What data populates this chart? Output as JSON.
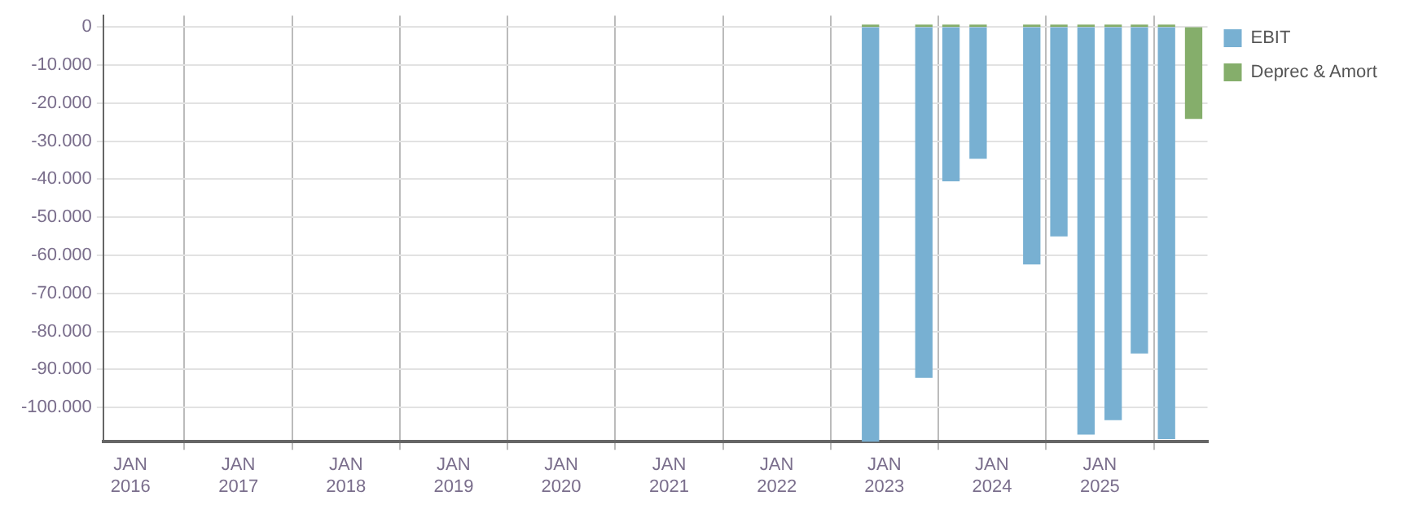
{
  "chart_data": {
    "type": "bar",
    "x": [
      "2022-11-15",
      "2023-05-15",
      "2023-08-15",
      "2023-11-15",
      "2024-05-15",
      "2024-08-15",
      "2024-11-15",
      "2025-02-15",
      "2025-05-15",
      "2025-08-15",
      "2025-11-15"
    ],
    "series": [
      {
        "name": "EBIT",
        "color": "#78b0d2",
        "values": [
          -109000,
          -92100,
          -40400,
          -34500,
          -62300,
          -54900,
          -107000,
          -103200,
          -85700,
          -108200,
          null
        ]
      },
      {
        "name": "Deprec & Amort",
        "color": "#85ae6b",
        "values": [
          500,
          500,
          500,
          500,
          500,
          500,
          500,
          500,
          500,
          500,
          -24000
        ]
      }
    ],
    "xlim": [
      "2015-10-01",
      "2026-01-01"
    ],
    "xticks": [
      {
        "value": "2016-01-01",
        "label": "JAN 2016"
      },
      {
        "value": "2017-01-01",
        "label": "JAN 2017"
      },
      {
        "value": "2018-01-01",
        "label": "JAN 2018"
      },
      {
        "value": "2019-01-01",
        "label": "JAN 2019"
      },
      {
        "value": "2020-01-01",
        "label": "JAN 2020"
      },
      {
        "value": "2021-01-01",
        "label": "JAN 2021"
      },
      {
        "value": "2022-01-01",
        "label": "JAN 2022"
      },
      {
        "value": "2023-01-01",
        "label": "JAN 2023"
      },
      {
        "value": "2024-01-01",
        "label": "JAN 2024"
      },
      {
        "value": "2025-01-01",
        "label": "JAN 2025"
      }
    ],
    "ylim": [
      -109000,
      3000
    ],
    "yticks": [
      0,
      {
        "value": -10000,
        "label": "-10.000"
      },
      {
        "value": -20000,
        "label": "-20.000"
      },
      {
        "value": -30000,
        "label": "-30.000"
      },
      {
        "value": -40000,
        "label": "-40.000"
      },
      {
        "value": -50000,
        "label": "-50.000"
      },
      {
        "value": -60000,
        "label": "-60.000"
      },
      {
        "value": -70000,
        "label": "-70.000"
      },
      {
        "value": -80000,
        "label": "-80.000"
      },
      {
        "value": -90000,
        "label": "-90.000"
      },
      {
        "value": -100000,
        "label": "-100.000"
      }
    ],
    "grid": true,
    "legend": "top right"
  }
}
